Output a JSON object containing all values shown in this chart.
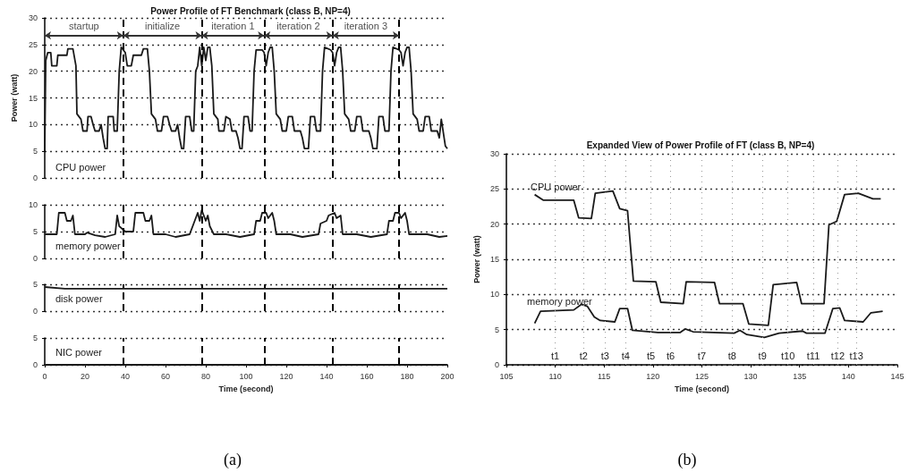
{
  "chart_data": [
    {
      "type": "line",
      "title": "Power Profile of FT Benchmark (class B, NP=4)",
      "ylabel": "Power (watt)",
      "xlim": [
        0,
        200
      ],
      "xticks": [
        0,
        20,
        40,
        60,
        80,
        100,
        120,
        140,
        160,
        180,
        200
      ],
      "ylim": [
        0,
        30
      ],
      "yticks": [
        0,
        5,
        10,
        15,
        20,
        25,
        30
      ],
      "grid": "y",
      "legend": false,
      "marker": "none",
      "tick_labels": "y",
      "series": [
        {
          "name": "CPU power",
          "color": "#1a1a1a",
          "x": [
            0,
            0.5,
            1.5,
            3,
            3.5,
            6,
            6.5,
            11,
            11.5,
            14,
            15.5,
            16,
            18,
            19,
            21,
            21.5,
            23,
            24,
            25,
            27,
            28,
            29,
            30,
            31,
            31.5,
            34,
            34.5,
            36,
            37,
            38,
            39,
            40,
            41,
            43,
            44,
            48,
            49,
            51,
            52,
            53,
            55,
            56,
            58,
            59,
            61,
            62,
            63,
            65,
            66,
            67,
            68,
            69,
            70,
            72,
            73,
            74,
            75,
            76,
            77,
            78,
            79,
            80,
            81,
            82,
            83,
            84,
            86,
            86.5,
            89,
            90,
            92,
            93,
            95,
            96,
            97,
            98,
            99,
            101,
            102,
            103,
            104,
            105,
            108,
            109,
            110,
            111,
            112,
            113,
            114,
            115,
            117,
            118,
            120,
            121,
            123,
            124,
            127,
            128,
            129,
            131,
            132,
            134,
            135,
            137,
            138,
            139,
            142,
            143,
            144,
            145,
            146,
            147,
            148,
            149,
            151,
            152,
            154,
            155,
            157,
            158,
            161,
            162,
            163,
            165,
            166,
            168,
            169,
            171,
            172,
            173,
            176,
            177,
            178,
            179,
            180,
            181,
            182,
            183,
            185,
            186,
            188,
            189,
            191,
            192,
            195,
            196,
            197,
            199,
            200
          ],
          "values": [
            5,
            22,
            23.5,
            23.5,
            21,
            21,
            23,
            23,
            24.2,
            24.2,
            21,
            12,
            11,
            8.8,
            8.8,
            11.5,
            11.5,
            10,
            8.8,
            8.8,
            10,
            7.5,
            5.5,
            5.5,
            11.5,
            11.5,
            8.8,
            8.8,
            20,
            24.5,
            24,
            23.5,
            21,
            21,
            23,
            23,
            24.2,
            24.2,
            20,
            12,
            11,
            8.8,
            8.8,
            11.5,
            11.5,
            10,
            8.8,
            8.8,
            10,
            7.5,
            5.5,
            5.5,
            11.5,
            11.5,
            8.8,
            8.8,
            20,
            21,
            24.5,
            21,
            24.5,
            22,
            24.5,
            24.5,
            21,
            12,
            11,
            8.8,
            8.8,
            11.5,
            11,
            8.8,
            8.8,
            7.5,
            5.5,
            5.5,
            11.5,
            11.5,
            8.8,
            8.8,
            20,
            24,
            24,
            23.5,
            21,
            23.5,
            24.5,
            24.5,
            20,
            12,
            11,
            8.8,
            8.8,
            11.5,
            11.5,
            8.8,
            8.8,
            7.5,
            5.5,
            5.5,
            11.5,
            11.5,
            8.8,
            8.8,
            20,
            24.5,
            24,
            23.5,
            21,
            23.5,
            24.5,
            24.5,
            20,
            12,
            11,
            8.8,
            8.8,
            11.5,
            11.5,
            8.8,
            8.8,
            7.5,
            5.5,
            5.5,
            11.5,
            11.5,
            8.8,
            8.8,
            20,
            24.5,
            24,
            23.5,
            21,
            23.5,
            24.5,
            24.5,
            20,
            12,
            11,
            8.8,
            8.8,
            11.5,
            11.5,
            8.8,
            8.8,
            7.5,
            11,
            6,
            5.5
          ]
        }
      ],
      "ref_lines": [
        {
          "axis": "x",
          "value": 39,
          "color": "#000000",
          "line_style": "dashed"
        },
        {
          "axis": "x",
          "value": 78,
          "color": "#000000",
          "line_style": "dashed"
        },
        {
          "axis": "x",
          "value": 109,
          "color": "#000000",
          "line_style": "dashed"
        },
        {
          "axis": "x",
          "value": 143,
          "color": "#000000",
          "line_style": "dashed"
        },
        {
          "axis": "x",
          "value": 176,
          "color": "#000000",
          "line_style": "dashed"
        }
      ],
      "annotations": [
        "startup",
        "initialize",
        "iteration 1",
        "iteration 2",
        "iteration 3"
      ]
    },
    {
      "type": "line",
      "xlim": [
        0,
        200
      ],
      "xticks": [
        0,
        20,
        40,
        60,
        80,
        100,
        120,
        140,
        160,
        180,
        200
      ],
      "ylim": [
        0,
        10
      ],
      "yticks": [
        0,
        5,
        10
      ],
      "grid": "y",
      "legend": false,
      "marker": "none",
      "tick_labels": "y",
      "series": [
        {
          "name": "memory power",
          "color": "#1a1a1a",
          "x": [
            0,
            6,
            7,
            10,
            11,
            13,
            14,
            15,
            20,
            21,
            25,
            30,
            35,
            36,
            37,
            40,
            44,
            45,
            49,
            50,
            52,
            53,
            54,
            60,
            65,
            72,
            74,
            76,
            77,
            78,
            80,
            81,
            82,
            84,
            90,
            97,
            104,
            105,
            107,
            108,
            110,
            111,
            113,
            114,
            115,
            122,
            128,
            136,
            137,
            140,
            141,
            144,
            145,
            147,
            148,
            155,
            162,
            170,
            171,
            173,
            174,
            176,
            177,
            179,
            180,
            181,
            190,
            196,
            200
          ],
          "values": [
            4.5,
            4.5,
            8.5,
            8.5,
            7,
            7,
            8,
            4.5,
            4.5,
            4.8,
            4.3,
            4,
            4.5,
            8,
            6,
            5,
            5,
            8.5,
            8.5,
            7,
            7,
            8,
            4.5,
            4.5,
            4,
            4.5,
            6.5,
            8.5,
            7,
            9,
            7,
            8,
            6,
            4.5,
            4.5,
            4,
            4.5,
            7,
            7,
            8.5,
            8.5,
            7.5,
            8.5,
            7,
            4.5,
            4.5,
            4,
            4.5,
            6.5,
            7,
            8,
            8.5,
            7.5,
            8,
            4.5,
            4.5,
            4,
            4.5,
            7,
            7,
            8.5,
            8.5,
            7.5,
            8.5,
            7,
            4.5,
            4.5,
            4,
            4.2
          ]
        }
      ],
      "ref_lines": [
        {
          "axis": "x",
          "value": 39,
          "color": "#000000",
          "line_style": "dashed"
        },
        {
          "axis": "x",
          "value": 78,
          "color": "#000000",
          "line_style": "dashed"
        },
        {
          "axis": "x",
          "value": 109,
          "color": "#000000",
          "line_style": "dashed"
        },
        {
          "axis": "x",
          "value": 143,
          "color": "#000000",
          "line_style": "dashed"
        },
        {
          "axis": "x",
          "value": 176,
          "color": "#000000",
          "line_style": "dashed"
        }
      ]
    },
    {
      "type": "line",
      "xlim": [
        0,
        200
      ],
      "xticks": [
        0,
        20,
        40,
        60,
        80,
        100,
        120,
        140,
        160,
        180,
        200
      ],
      "ylim": [
        0,
        5
      ],
      "yticks": [
        0,
        5
      ],
      "grid": "y",
      "legend": false,
      "marker": "none",
      "tick_labels": "y",
      "series": [
        {
          "name": "disk power",
          "color": "#1a1a1a",
          "x": [
            0,
            10,
            200
          ],
          "values": [
            4.5,
            4.2,
            4.2
          ]
        }
      ],
      "ref_lines": [
        {
          "axis": "x",
          "value": 39,
          "color": "#000000",
          "line_style": "dashed"
        },
        {
          "axis": "x",
          "value": 78,
          "color": "#000000",
          "line_style": "dashed"
        },
        {
          "axis": "x",
          "value": 109,
          "color": "#000000",
          "line_style": "dashed"
        },
        {
          "axis": "x",
          "value": 143,
          "color": "#000000",
          "line_style": "dashed"
        },
        {
          "axis": "x",
          "value": 176,
          "color": "#000000",
          "line_style": "dashed"
        }
      ]
    },
    {
      "type": "line",
      "xlabel": "Time (second)",
      "xlim": [
        0,
        200
      ],
      "xticks": [
        0,
        20,
        40,
        60,
        80,
        100,
        120,
        140,
        160,
        180,
        200
      ],
      "ylim": [
        0,
        5
      ],
      "yticks": [
        0,
        5
      ],
      "grid": "y",
      "legend": false,
      "marker": "none",
      "annotations": [
        "(a)"
      ],
      "series": [
        {
          "name": "NIC power",
          "color": "#1a1a1a",
          "x": [
            0,
            200
          ],
          "values": [
            0,
            0
          ]
        }
      ],
      "ref_lines": [
        {
          "axis": "x",
          "value": 39,
          "color": "#000000",
          "line_style": "dashed"
        },
        {
          "axis": "x",
          "value": 78,
          "color": "#000000",
          "line_style": "dashed"
        },
        {
          "axis": "x",
          "value": 109,
          "color": "#000000",
          "line_style": "dashed"
        },
        {
          "axis": "x",
          "value": 143,
          "color": "#000000",
          "line_style": "dashed"
        },
        {
          "axis": "x",
          "value": 176,
          "color": "#000000",
          "line_style": "dashed"
        }
      ]
    },
    {
      "type": "line",
      "title": "Expanded View of Power Profile of FT (class B, NP=4)",
      "xlabel": "Time (second)",
      "ylabel": "Power (watt)",
      "xlim": [
        105,
        145
      ],
      "xticks": [
        105,
        110,
        115,
        120,
        125,
        130,
        135,
        140,
        145
      ],
      "ylim": [
        0,
        30
      ],
      "yticks": [
        0,
        5,
        10,
        15,
        20,
        25,
        30
      ],
      "grid": "y",
      "legend": false,
      "marker": "none",
      "annotations": [
        "(b)"
      ],
      "series": [
        {
          "name": "CPU power",
          "color": "#1a1a1a",
          "x": [
            107.9,
            108.8,
            111.9,
            112.4,
            113.7,
            114.1,
            115.9,
            116.6,
            117.4,
            118,
            120.3,
            120.8,
            123.1,
            123.4,
            126.3,
            126.8,
            129.2,
            129.8,
            131.8,
            132.3,
            134.7,
            135.2,
            137.5,
            138,
            138.8,
            139.6,
            141,
            142.5,
            143.3
          ],
          "values": [
            24.2,
            23.4,
            23.4,
            20.9,
            20.8,
            24.4,
            24.7,
            22.2,
            21.9,
            11.9,
            11.8,
            8.9,
            8.7,
            11.8,
            11.7,
            8.7,
            8.7,
            5.8,
            5.6,
            11.4,
            11.7,
            8.7,
            8.7,
            19.9,
            20.4,
            24.2,
            24.4,
            23.6,
            23.6
          ]
        },
        {
          "name": "memory power",
          "color": "#1a1a1a",
          "x": [
            107.9,
            108.5,
            111.9,
            112.7,
            113.3,
            114,
            114.6,
            116.1,
            116.6,
            117.4,
            117.9,
            120.5,
            122.8,
            123.3,
            124.1,
            128.3,
            128.9,
            129.6,
            131.4,
            132.9,
            135.3,
            135.7,
            137.6,
            138.4,
            139.1,
            139.6,
            141.5,
            142.3,
            143.5
          ],
          "values": [
            5.9,
            7.6,
            7.8,
            8.6,
            8.3,
            6.8,
            6.3,
            6.1,
            8,
            8,
            4.9,
            4.6,
            4.6,
            5.1,
            4.7,
            4.5,
            4.9,
            4.3,
            3.9,
            4.5,
            4.8,
            4.5,
            4.5,
            8,
            8.1,
            6.3,
            6.1,
            7.4,
            7.6
          ]
        }
      ],
      "ref_lines": [
        {
          "axis": "x",
          "value": 110,
          "label": "t1",
          "color": "#999999",
          "line_style": "dotted"
        },
        {
          "axis": "x",
          "value": 112.9,
          "label": "t2",
          "color": "#999999",
          "line_style": "dotted"
        },
        {
          "axis": "x",
          "value": 115.1,
          "label": "t3",
          "color": "#999999",
          "line_style": "dotted"
        },
        {
          "axis": "x",
          "value": 117.2,
          "label": "t4",
          "color": "#999999",
          "line_style": "dotted"
        },
        {
          "axis": "x",
          "value": 119.8,
          "label": "t5",
          "color": "#999999",
          "line_style": "dotted"
        },
        {
          "axis": "x",
          "value": 121.8,
          "label": "t6",
          "color": "#999999",
          "line_style": "dotted"
        },
        {
          "axis": "x",
          "value": 125,
          "label": "t7",
          "color": "#999999",
          "line_style": "dotted"
        },
        {
          "axis": "x",
          "value": 128.1,
          "label": "t8",
          "color": "#999999",
          "line_style": "dotted"
        },
        {
          "axis": "x",
          "value": 131.2,
          "label": "t9",
          "color": "#999999",
          "line_style": "dotted"
        },
        {
          "axis": "x",
          "value": 133.8,
          "label": "t10",
          "color": "#999999",
          "line_style": "dotted"
        },
        {
          "axis": "x",
          "value": 136.4,
          "label": "t11",
          "color": "#999999",
          "line_style": "dotted"
        },
        {
          "axis": "x",
          "value": 138.9,
          "label": "t12",
          "color": "#999999",
          "line_style": "dotted"
        },
        {
          "axis": "x",
          "value": 140.8,
          "label": "t13",
          "color": "#999999",
          "line_style": "dotted"
        }
      ]
    }
  ]
}
